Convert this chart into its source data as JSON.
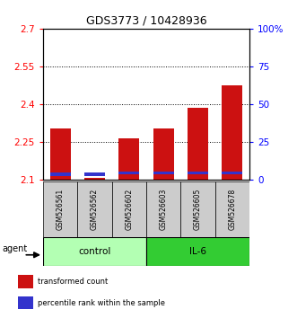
{
  "title": "GDS3773 / 10428936",
  "samples": [
    "GSM526561",
    "GSM526562",
    "GSM526602",
    "GSM526603",
    "GSM526605",
    "GSM526678"
  ],
  "red_values": [
    2.305,
    2.106,
    2.265,
    2.305,
    2.385,
    2.475
  ],
  "blue_values": [
    2.115,
    2.115,
    2.12,
    2.12,
    2.12,
    2.12
  ],
  "blue_heights": [
    0.012,
    0.012,
    0.012,
    0.012,
    0.012,
    0.012
  ],
  "ymin": 2.1,
  "ymax": 2.7,
  "y_ticks_left": [
    2.1,
    2.25,
    2.4,
    2.55,
    2.7
  ],
  "y_ticks_right": [
    0,
    25,
    50,
    75,
    100
  ],
  "groups": [
    {
      "label": "control",
      "indices": [
        0,
        1,
        2
      ],
      "color": "#b3ffb3"
    },
    {
      "label": "IL-6",
      "indices": [
        3,
        4,
        5
      ],
      "color": "#33cc33"
    }
  ],
  "bar_color_red": "#cc1111",
  "bar_color_blue": "#3333cc",
  "bar_width": 0.6,
  "agent_label": "agent",
  "legend": [
    {
      "color": "#cc1111",
      "label": "transformed count"
    },
    {
      "color": "#3333cc",
      "label": "percentile rank within the sample"
    }
  ],
  "gridlines": [
    2.25,
    2.4,
    2.55
  ],
  "sample_box_color": "#cccccc",
  "control_color": "#b3ffb3",
  "il6_color": "#33cc33"
}
